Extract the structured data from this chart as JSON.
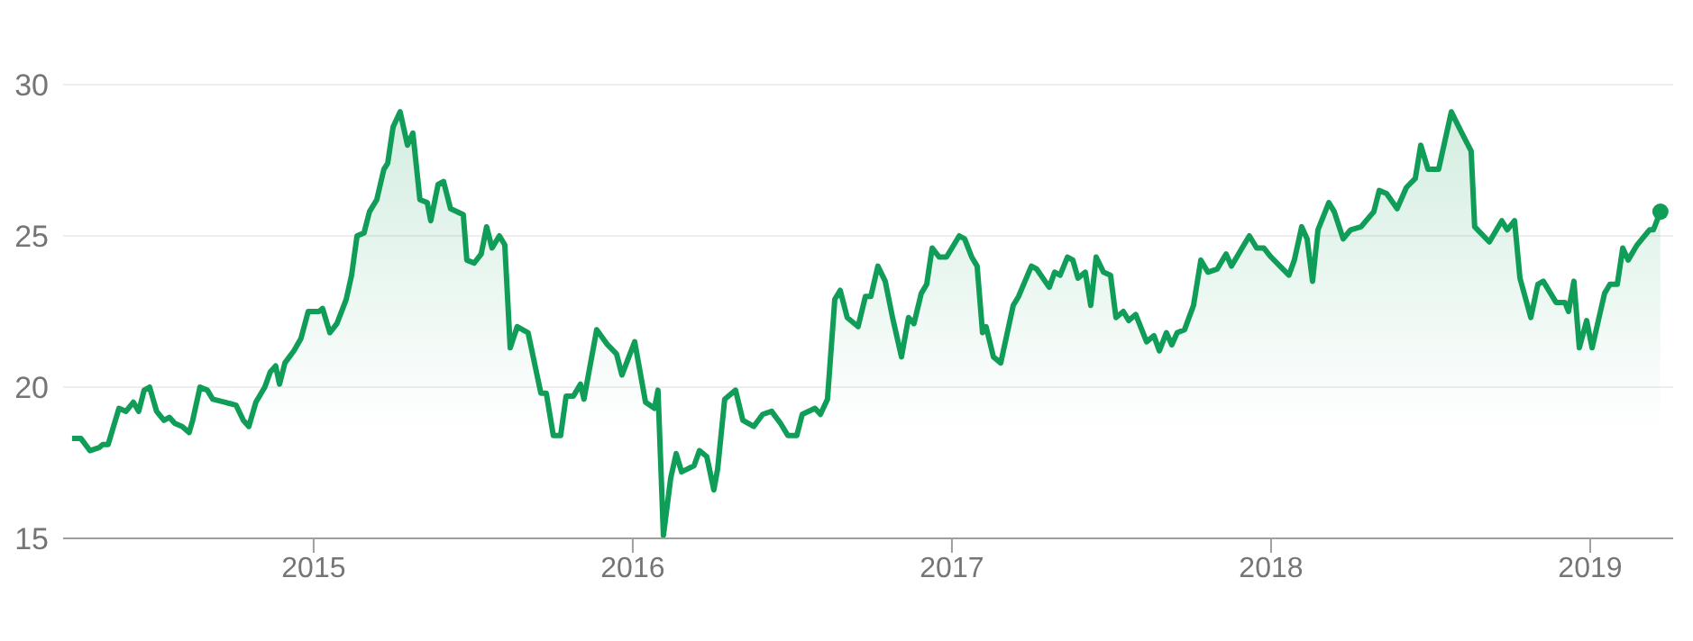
{
  "chart_data": {
    "type": "area",
    "x": [
      2014.243,
      2014.271,
      2014.299,
      2014.328,
      2014.339,
      2014.356,
      2014.39,
      2014.412,
      2014.435,
      2014.452,
      2014.469,
      2014.486,
      2014.508,
      2014.531,
      2014.548,
      2014.565,
      2014.588,
      2014.61,
      2014.621,
      2014.644,
      2014.667,
      2014.684,
      2014.723,
      2014.757,
      2014.78,
      2014.797,
      2014.819,
      2014.847,
      2014.864,
      2014.881,
      2014.893,
      2014.91,
      2014.938,
      2014.96,
      2014.983,
      2015.017,
      2015.028,
      2015.051,
      2015.073,
      2015.102,
      2015.119,
      2015.136,
      2015.158,
      2015.175,
      2015.198,
      2015.22,
      2015.232,
      2015.249,
      2015.271,
      2015.294,
      2015.311,
      2015.333,
      2015.356,
      2015.367,
      2015.39,
      2015.407,
      2015.429,
      2015.469,
      2015.48,
      2015.503,
      2015.525,
      2015.542,
      2015.559,
      2015.582,
      2015.599,
      2015.616,
      2015.638,
      2015.672,
      2015.712,
      2015.729,
      2015.751,
      2015.774,
      2015.791,
      2015.814,
      2015.836,
      2015.847,
      2015.887,
      2015.921,
      2015.949,
      2015.966,
      2016.006,
      2016.04,
      2016.068,
      2016.079,
      2016.096,
      2016.119,
      2016.136,
      2016.153,
      2016.192,
      2016.209,
      2016.232,
      2016.254,
      2016.266,
      2016.288,
      2016.322,
      2016.345,
      2016.379,
      2016.407,
      2016.435,
      2016.463,
      2016.486,
      2016.514,
      2016.531,
      2016.571,
      2016.588,
      2016.61,
      2016.633,
      2016.65,
      2016.672,
      2016.706,
      2016.729,
      2016.746,
      2016.768,
      2016.791,
      2016.814,
      2016.842,
      2016.864,
      2016.881,
      2016.904,
      2016.921,
      2016.938,
      2016.96,
      2016.983,
      2017.023,
      2017.04,
      2017.062,
      2017.079,
      2017.096,
      2017.107,
      2017.13,
      2017.153,
      2017.192,
      2017.209,
      2017.249,
      2017.266,
      2017.305,
      2017.322,
      2017.339,
      2017.362,
      2017.379,
      2017.395,
      2017.418,
      2017.435,
      2017.452,
      2017.475,
      2017.497,
      2017.514,
      2017.537,
      2017.554,
      2017.576,
      2017.61,
      2017.633,
      2017.65,
      2017.672,
      2017.689,
      2017.706,
      2017.729,
      2017.757,
      2017.78,
      2017.802,
      2017.831,
      2017.859,
      2017.876,
      2017.915,
      2017.932,
      2017.955,
      2017.977,
      2018.0,
      2018.028,
      2018.056,
      2018.073,
      2018.096,
      2018.113,
      2018.13,
      2018.147,
      2018.181,
      2018.198,
      2018.226,
      2018.249,
      2018.282,
      2018.322,
      2018.339,
      2018.362,
      2018.395,
      2018.424,
      2018.452,
      2018.469,
      2018.492,
      2018.525,
      2018.565,
      2018.593,
      2018.627,
      2018.638,
      2018.684,
      2018.723,
      2018.74,
      2018.763,
      2018.78,
      2018.814,
      2018.836,
      2018.853,
      2018.893,
      2018.921,
      2018.932,
      2018.949,
      2018.966,
      2018.989,
      2019.006,
      2019.045,
      2019.062,
      2019.085,
      2019.102,
      2019.119,
      2019.147,
      2019.186,
      2019.198,
      2019.22
    ],
    "series": [
      {
        "color": "#0f9d58",
        "values": [
          18.3,
          18.3,
          17.9,
          18.0,
          18.1,
          18.1,
          19.3,
          19.2,
          19.5,
          19.2,
          19.9,
          20.0,
          19.2,
          18.9,
          19.0,
          18.8,
          18.7,
          18.5,
          18.9,
          20.0,
          19.9,
          19.6,
          19.5,
          19.4,
          18.9,
          18.7,
          19.5,
          20.0,
          20.5,
          20.7,
          20.1,
          20.8,
          21.2,
          21.6,
          22.5,
          22.5,
          22.6,
          21.8,
          22.1,
          22.9,
          23.7,
          25.0,
          25.1,
          25.8,
          26.2,
          27.2,
          27.4,
          28.6,
          29.1,
          28.0,
          28.4,
          26.2,
          26.1,
          25.5,
          26.7,
          26.8,
          25.9,
          25.7,
          24.2,
          24.1,
          24.4,
          25.3,
          24.6,
          25.0,
          24.7,
          21.3,
          22.0,
          21.8,
          19.8,
          19.8,
          18.4,
          18.4,
          19.7,
          19.7,
          20.1,
          19.6,
          21.9,
          21.4,
          21.1,
          20.4,
          21.5,
          19.5,
          19.3,
          19.9,
          15.1,
          17.0,
          17.8,
          17.2,
          17.4,
          17.9,
          17.7,
          16.6,
          17.3,
          19.6,
          19.9,
          18.9,
          18.7,
          19.1,
          19.2,
          18.8,
          18.4,
          18.4,
          19.1,
          19.3,
          19.1,
          19.6,
          22.9,
          23.2,
          22.3,
          22.0,
          23.0,
          23.0,
          24.0,
          23.5,
          22.3,
          21.0,
          22.3,
          22.1,
          23.1,
          23.4,
          24.6,
          24.3,
          24.3,
          25.0,
          24.9,
          24.3,
          24.0,
          21.8,
          22.0,
          21.0,
          20.8,
          22.7,
          23.0,
          24.0,
          23.9,
          23.3,
          23.8,
          23.7,
          24.3,
          24.2,
          23.6,
          23.8,
          22.7,
          24.3,
          23.8,
          23.7,
          22.3,
          22.5,
          22.2,
          22.4,
          21.5,
          21.7,
          21.2,
          21.8,
          21.4,
          21.8,
          21.9,
          22.7,
          24.2,
          23.8,
          23.9,
          24.4,
          24.0,
          24.7,
          25.0,
          24.6,
          24.6,
          24.3,
          24.0,
          23.7,
          24.2,
          25.3,
          24.9,
          23.5,
          25.2,
          26.1,
          25.8,
          24.9,
          25.2,
          25.3,
          25.8,
          26.5,
          26.4,
          25.9,
          26.6,
          26.9,
          28.0,
          27.2,
          27.2,
          29.1,
          28.5,
          27.8,
          25.3,
          24.8,
          25.5,
          25.2,
          25.5,
          23.6,
          22.3,
          23.4,
          23.5,
          22.8,
          22.8,
          22.5,
          23.5,
          21.3,
          22.2,
          21.3,
          23.1,
          23.4,
          23.4,
          24.6,
          24.2,
          24.7,
          25.2,
          25.2,
          25.8
        ]
      },
      {
        "type": "scatter",
        "color": "#0f9d58",
        "x": [
          2019.22
        ],
        "values": [
          25.8
        ]
      }
    ],
    "xlim": [
      2014.215,
      2019.26
    ],
    "xticks": [
      2015,
      2016,
      2017,
      2018,
      2019
    ],
    "ylim": [
      15,
      30
    ],
    "yticks": [
      15,
      20,
      25,
      30
    ],
    "grid": "y"
  }
}
